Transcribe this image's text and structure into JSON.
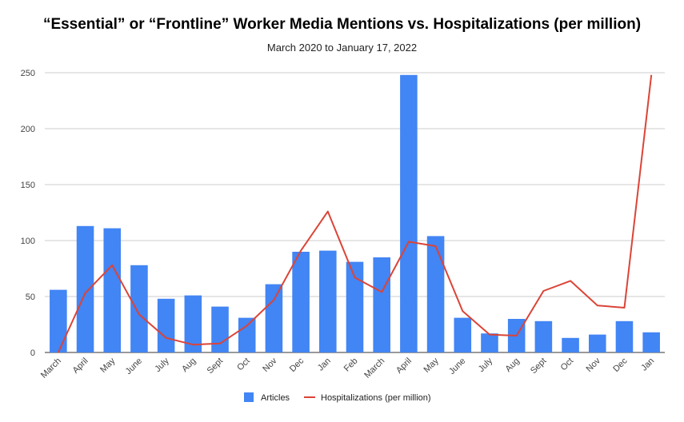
{
  "chart_data": {
    "type": "bar",
    "title": "“Essential” or “Frontline” Worker Media Mentions vs. Hospitalizations (per million)",
    "subtitle": "March 2020 to January 17, 2022",
    "xlabel": "",
    "ylabel": "",
    "ylim": [
      0,
      250
    ],
    "yticks": [
      0,
      50,
      100,
      150,
      200,
      250
    ],
    "grid": true,
    "legend_position": "bottom",
    "categories": [
      "March",
      "April",
      "May",
      "June",
      "July",
      "Aug",
      "Sept",
      "Oct",
      "Nov",
      "Dec",
      "Jan",
      "Feb",
      "March",
      "April",
      "May",
      "June",
      "July",
      "Aug",
      "Sept",
      "Oct",
      "Nov",
      "Dec",
      "Jan"
    ],
    "series": [
      {
        "name": "Articles",
        "type": "bar",
        "color": "#4285f4",
        "values": [
          56,
          113,
          111,
          78,
          48,
          51,
          41,
          31,
          61,
          90,
          91,
          81,
          85,
          248,
          104,
          31,
          17,
          30,
          28,
          13,
          16,
          28,
          18
        ]
      },
      {
        "name": "Hospitalizations (per million)",
        "type": "line",
        "color": "#db4437",
        "values": [
          0,
          53,
          78,
          34,
          13,
          7,
          8,
          24,
          47,
          91,
          126,
          67,
          54,
          99,
          95,
          37,
          16,
          15,
          55,
          64,
          42,
          40,
          248
        ]
      }
    ]
  }
}
